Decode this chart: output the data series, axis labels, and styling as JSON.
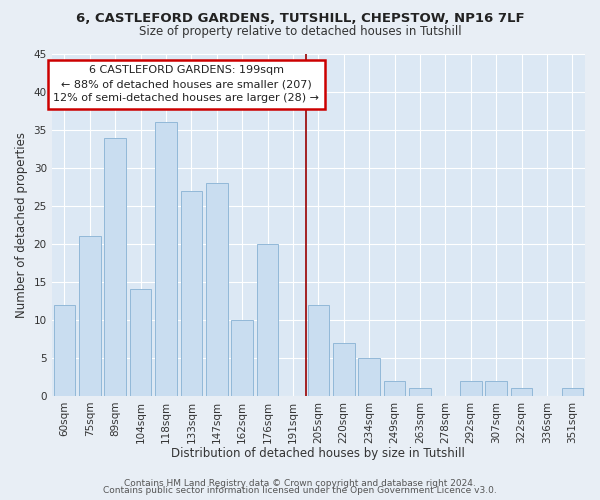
{
  "title": "6, CASTLEFORD GARDENS, TUTSHILL, CHEPSTOW, NP16 7LF",
  "subtitle": "Size of property relative to detached houses in Tutshill",
  "xlabel": "Distribution of detached houses by size in Tutshill",
  "ylabel": "Number of detached properties",
  "bar_labels": [
    "60sqm",
    "75sqm",
    "89sqm",
    "104sqm",
    "118sqm",
    "133sqm",
    "147sqm",
    "162sqm",
    "176sqm",
    "191sqm",
    "205sqm",
    "220sqm",
    "234sqm",
    "249sqm",
    "263sqm",
    "278sqm",
    "292sqm",
    "307sqm",
    "322sqm",
    "336sqm",
    "351sqm"
  ],
  "bar_values": [
    12,
    21,
    34,
    14,
    36,
    27,
    28,
    10,
    20,
    0,
    12,
    7,
    5,
    2,
    1,
    0,
    2,
    2,
    1,
    0,
    1
  ],
  "bar_color": "#c9ddf0",
  "bar_edge_color": "#92b8d8",
  "annotation_title": "6 CASTLEFORD GARDENS: 199sqm",
  "annotation_line1": "← 88% of detached houses are smaller (207)",
  "annotation_line2": "12% of semi-detached houses are larger (28) →",
  "annotation_box_color": "#ffffff",
  "annotation_box_edge": "#cc0000",
  "vline_color": "#990000",
  "ylim": [
    0,
    45
  ],
  "yticks": [
    0,
    5,
    10,
    15,
    20,
    25,
    30,
    35,
    40,
    45
  ],
  "footer1": "Contains HM Land Registry data © Crown copyright and database right 2024.",
  "footer2": "Contains public sector information licensed under the Open Government Licence v3.0.",
  "bg_color": "#e8eef5",
  "plot_bg_color": "#dce8f4",
  "grid_color": "#ffffff",
  "title_fontsize": 9.5,
  "subtitle_fontsize": 8.5,
  "axis_label_fontsize": 8.5,
  "tick_fontsize": 7.5,
  "annotation_fontsize": 8.0,
  "footer_fontsize": 6.5
}
